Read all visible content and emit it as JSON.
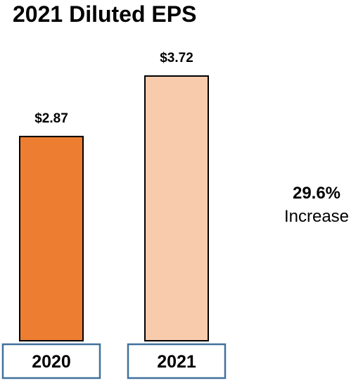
{
  "chart_data": {
    "type": "bar",
    "title": "2021 Diluted EPS",
    "categories": [
      "2020",
      "2021"
    ],
    "values": [
      2.87,
      3.72
    ],
    "value_labels": [
      "$2.87",
      "$3.72"
    ],
    "bar_colors": [
      "#ED7D31",
      "#F8CBAD"
    ],
    "category_box_border": "#41719C",
    "ylim": [
      0,
      3.72
    ],
    "grid": false,
    "legend": "none"
  },
  "callout": {
    "value": "29.6%",
    "label": "Increase"
  }
}
